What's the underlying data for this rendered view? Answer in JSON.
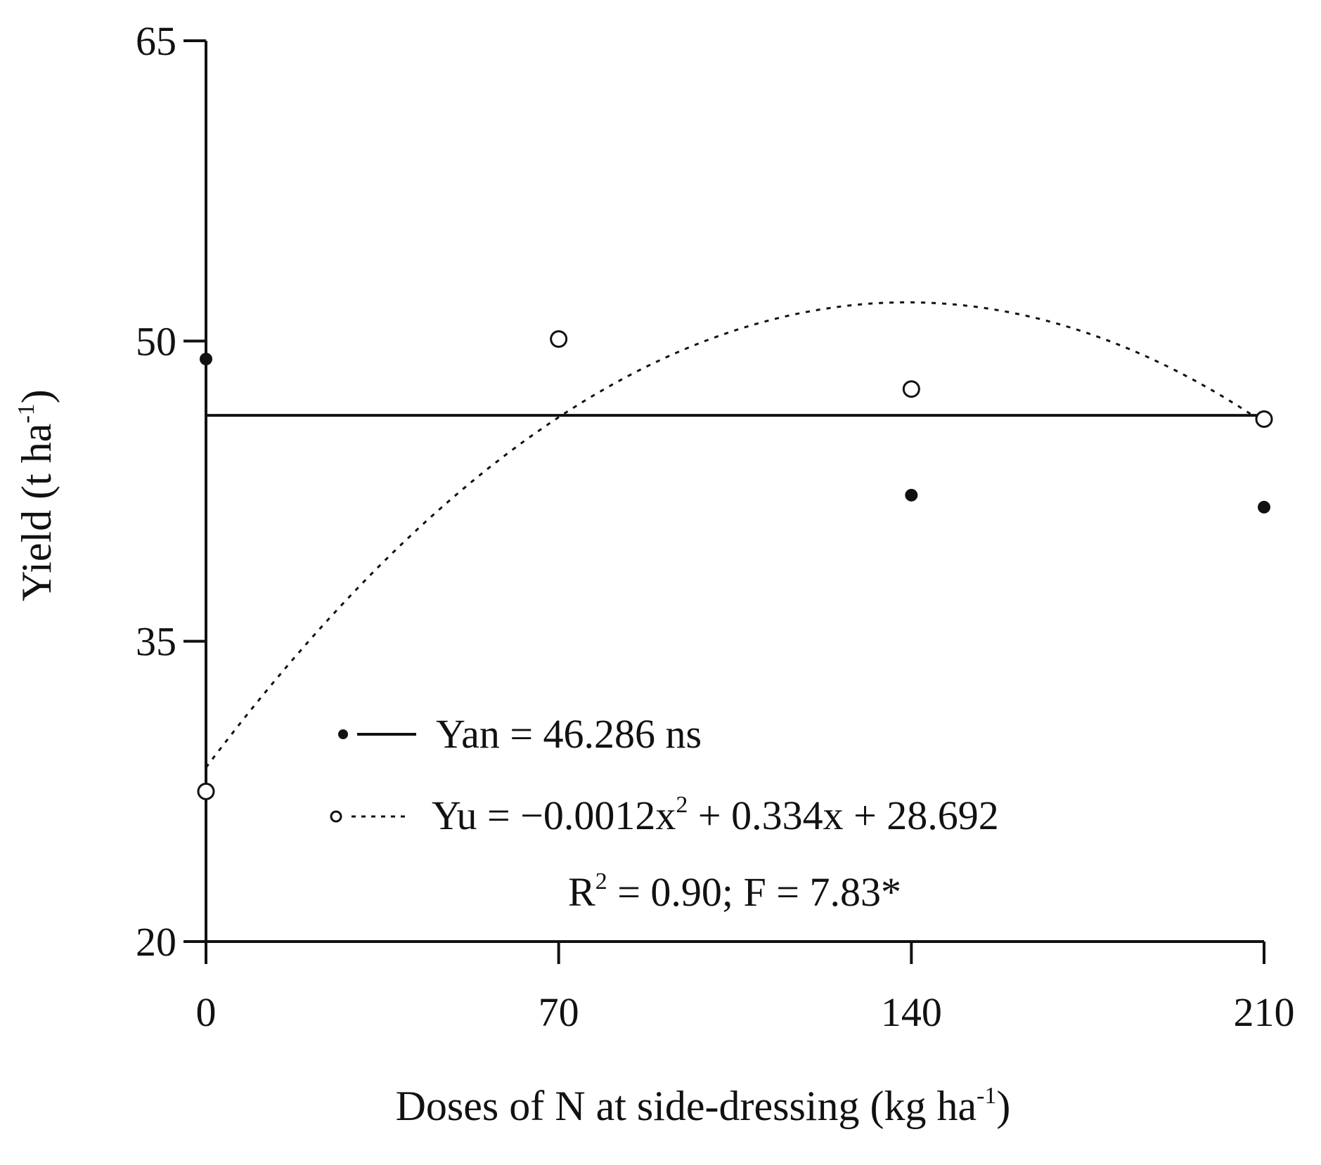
{
  "chart_data": {
    "type": "scatter",
    "xlabel": "Doses of N at side-dressing (kg ha",
    "xlabel_unit_exp": "-1",
    "xlabel_close": ")",
    "ylabel": "Yield (t ha",
    "ylabel_unit_exp": "-1",
    "ylabel_close": ")",
    "x_ticks": [
      "0",
      "70",
      "140",
      "210"
    ],
    "y_ticks": [
      "20",
      "35",
      "50",
      "65"
    ],
    "xlim": [
      0,
      210
    ],
    "ylim": [
      20,
      65
    ],
    "grid": false,
    "legend_position": "bottom-center",
    "series": [
      {
        "name": "Yan",
        "marker": "filled-circle",
        "line_style": "solid",
        "x": [
          0,
          140,
          210
        ],
        "y": [
          49.1,
          42.3,
          41.7
        ],
        "fit": {
          "kind": "constant",
          "value": 46.286
        },
        "legend": {
          "prefix": "Yan = ",
          "value": "46.286",
          "suffix": " ns"
        }
      },
      {
        "name": "Yu",
        "marker": "open-circle",
        "line_style": "dotted",
        "x": [
          0,
          70,
          140,
          210
        ],
        "y": [
          27.5,
          50.1,
          47.6,
          46.1
        ],
        "fit": {
          "kind": "quadratic",
          "a": -0.0012,
          "b": 0.334,
          "c": 28.692
        },
        "legend": {
          "prefix": "Yu = −0.0012x",
          "sup": "2",
          "suffix": " + 0.334x + 28.692",
          "stats_pre": "R",
          "stats_sup": "2",
          "stats_post": " = 0.90; F = 7.83*"
        }
      }
    ],
    "colors": {
      "axis": "#111111",
      "marker": "#111111",
      "line": "#111111"
    }
  }
}
